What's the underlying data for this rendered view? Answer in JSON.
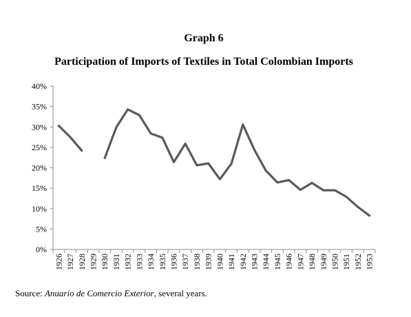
{
  "chart_data": {
    "type": "line",
    "title": "Graph 6",
    "subtitle": "Participation of Imports of Textiles in Total Colombian Imports",
    "xlabel": "",
    "ylabel": "",
    "ylim": [
      0,
      40
    ],
    "y_tick_labels": [
      "0%",
      "5%",
      "10%",
      "15%",
      "20%",
      "25%",
      "30%",
      "35%",
      "40%"
    ],
    "y_tick_values": [
      0,
      5,
      10,
      15,
      20,
      25,
      30,
      35,
      40
    ],
    "categories": [
      "1926",
      "1927",
      "1928",
      "1929",
      "1930",
      "1931",
      "1932",
      "1933",
      "1934",
      "1935",
      "1936",
      "1937",
      "1938",
      "1939",
      "1940",
      "1941",
      "1942",
      "1943",
      "1944",
      "1945",
      "1946",
      "1947",
      "1948",
      "1949",
      "1950",
      "1951",
      "1952",
      "1953"
    ],
    "series": [
      {
        "name": "",
        "color": "#595959",
        "values": [
          30.3,
          27.5,
          24.2,
          null,
          22.4,
          29.9,
          34.3,
          32.9,
          28.4,
          27.4,
          21.4,
          25.9,
          20.6,
          21.1,
          17.2,
          21.0,
          30.6,
          24.4,
          19.3,
          16.4,
          17.0,
          14.6,
          16.3,
          14.5,
          14.5,
          12.9,
          10.4,
          8.3
        ]
      }
    ],
    "grid": false,
    "legend": "none"
  },
  "source": {
    "prefix": "Source: ",
    "italic": "Anuario de Comercio Exterior",
    "suffix": ", several years."
  }
}
